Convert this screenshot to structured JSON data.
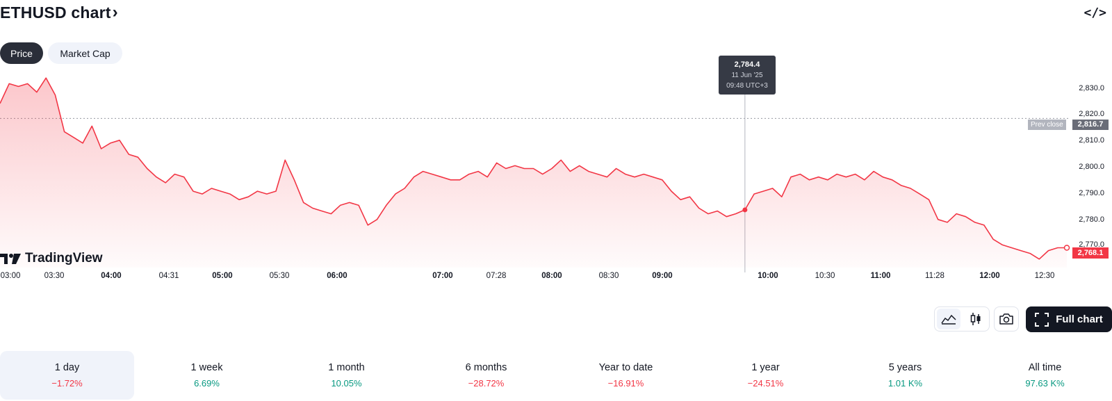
{
  "header": {
    "title": "ETHUSD chart",
    "title_chevron": "›",
    "embed_icon": "</>"
  },
  "tabs": [
    {
      "label": "Price",
      "active": true
    },
    {
      "label": "Market Cap",
      "active": false
    }
  ],
  "logo": {
    "text": "TradingView"
  },
  "tooltip": {
    "price": "2,784.4",
    "date": "11 Jun '25",
    "time": "09:48 UTC+3"
  },
  "price_axis": {
    "labels": [
      "2,830.0",
      "2,820.0",
      "2,810.0",
      "2,800.0",
      "2,790.0",
      "2,780.0",
      "2,770.0"
    ],
    "prev_close_label": "Prev close",
    "prev_close_value": "2,816.7",
    "last_price": "2,768.1"
  },
  "time_axis": [
    {
      "label": "03:00",
      "bold": false
    },
    {
      "label": "03:30",
      "bold": false
    },
    {
      "label": "04:00",
      "bold": true
    },
    {
      "label": "04:31",
      "bold": false
    },
    {
      "label": "05:00",
      "bold": true
    },
    {
      "label": "05:30",
      "bold": false
    },
    {
      "label": "06:00",
      "bold": true
    },
    {
      "label": "07:00",
      "bold": true
    },
    {
      "label": "07:28",
      "bold": false
    },
    {
      "label": "08:00",
      "bold": true
    },
    {
      "label": "08:30",
      "bold": false
    },
    {
      "label": "09:00",
      "bold": true
    },
    {
      "label": "10:00",
      "bold": true
    },
    {
      "label": "10:30",
      "bold": false
    },
    {
      "label": "11:00",
      "bold": true
    },
    {
      "label": "11:28",
      "bold": false
    },
    {
      "label": "12:00",
      "bold": true
    },
    {
      "label": "12:30",
      "bold": false
    }
  ],
  "toolbar": {
    "line_icon": "area-chart-icon",
    "candle_icon": "candlestick-icon",
    "camera_icon": "camera-icon",
    "full_chart_label": "Full chart"
  },
  "periods": [
    {
      "label": "1 day",
      "value": "−1.72%",
      "trend": "neg",
      "active": true
    },
    {
      "label": "1 week",
      "value": "6.69%",
      "trend": "pos",
      "active": false
    },
    {
      "label": "1 month",
      "value": "10.05%",
      "trend": "pos",
      "active": false
    },
    {
      "label": "6 months",
      "value": "−28.72%",
      "trend": "neg",
      "active": false
    },
    {
      "label": "Year to date",
      "value": "−16.91%",
      "trend": "neg",
      "active": false
    },
    {
      "label": "1 year",
      "value": "−24.51%",
      "trend": "neg",
      "active": false
    },
    {
      "label": "5 years",
      "value": "1.01 K%",
      "trend": "pos",
      "active": false
    },
    {
      "label": "All time",
      "value": "97.63 K%",
      "trend": "pos",
      "active": false
    }
  ],
  "colors": {
    "line": "#f23645",
    "fill_top": "#f23645",
    "positive": "#089981",
    "negative": "#f23645"
  },
  "chart_data": {
    "type": "area",
    "symbol": "ETHUSD",
    "ylim": [
      2764,
      2834
    ],
    "prev_close": 2816.7,
    "crosshair": {
      "time": "09:48",
      "value": 2784.4
    },
    "x": [
      "03:00",
      "03:05",
      "03:10",
      "03:15",
      "03:20",
      "03:25",
      "03:30",
      "03:35",
      "03:40",
      "03:45",
      "03:50",
      "03:55",
      "04:00",
      "04:05",
      "04:10",
      "04:15",
      "04:20",
      "04:25",
      "04:31",
      "04:35",
      "04:40",
      "04:45",
      "04:50",
      "04:55",
      "05:00",
      "05:05",
      "05:10",
      "05:15",
      "05:20",
      "05:25",
      "05:30",
      "05:35",
      "05:40",
      "05:45",
      "05:50",
      "05:55",
      "06:00",
      "06:05",
      "06:10",
      "06:15",
      "06:20",
      "06:25",
      "06:30",
      "06:35",
      "06:40",
      "06:45",
      "06:50",
      "06:55",
      "07:00",
      "07:05",
      "07:10",
      "07:15",
      "07:20",
      "07:28",
      "07:30",
      "07:35",
      "07:40",
      "07:45",
      "07:50",
      "07:55",
      "08:00",
      "08:05",
      "08:10",
      "08:15",
      "08:20",
      "08:25",
      "08:30",
      "08:35",
      "08:40",
      "08:45",
      "08:50",
      "08:55",
      "09:00",
      "09:05",
      "09:10",
      "09:15",
      "09:20",
      "09:25",
      "09:30",
      "09:35",
      "09:40",
      "09:48",
      "09:50",
      "09:55",
      "10:00",
      "10:05",
      "10:10",
      "10:15",
      "10:20",
      "10:25",
      "10:30",
      "10:35",
      "10:40",
      "10:45",
      "10:50",
      "10:55",
      "11:00",
      "11:05",
      "11:10",
      "11:15",
      "11:20",
      "11:28",
      "11:30",
      "11:35",
      "11:40",
      "11:45",
      "11:50",
      "11:55",
      "12:00",
      "12:05",
      "12:10",
      "12:15",
      "12:20",
      "12:25",
      "12:30",
      "12:35",
      "12:40"
    ],
    "values": [
      2822,
      2829,
      2828,
      2829,
      2826,
      2831,
      2825,
      2812,
      2810,
      2808,
      2814,
      2806,
      2808,
      2809,
      2804,
      2803,
      2799,
      2796,
      2794,
      2797,
      2796,
      2791,
      2790,
      2792,
      2791,
      2790,
      2788,
      2789,
      2791,
      2790,
      2791,
      2802,
      2795,
      2787,
      2785,
      2784,
      2783,
      2786,
      2787,
      2786,
      2779,
      2781,
      2786,
      2790,
      2792,
      2796,
      2798,
      2797,
      2796,
      2795,
      2795,
      2797,
      2798,
      2796,
      2801,
      2799,
      2800,
      2799,
      2799,
      2797,
      2799,
      2802,
      2798,
      2800,
      2798,
      2797,
      2796,
      2799,
      2797,
      2796,
      2797,
      2796,
      2795,
      2791,
      2788,
      2789,
      2785,
      2783,
      2784,
      2782,
      2783,
      2784.4,
      2790,
      2791,
      2792,
      2789,
      2796,
      2797,
      2795,
      2796,
      2795,
      2797,
      2796,
      2797,
      2795,
      2798,
      2796,
      2795,
      2793,
      2792,
      2790,
      2788,
      2781,
      2780,
      2783,
      2782,
      2780,
      2779,
      2774,
      2772,
      2771,
      2770,
      2769,
      2767,
      2770,
      2771,
      2771
    ]
  }
}
